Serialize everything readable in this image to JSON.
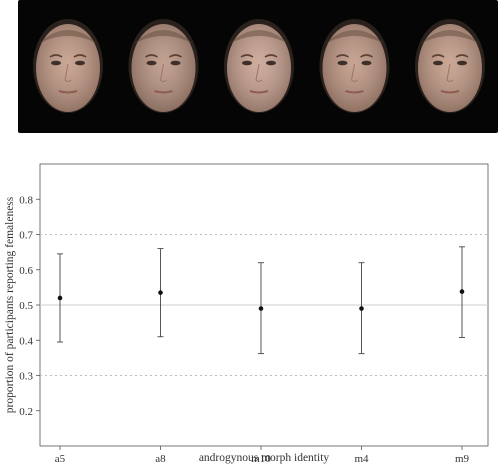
{
  "figure": {
    "faces": [
      {
        "id": "a5",
        "tone": "#c29a86"
      },
      {
        "id": "a8",
        "tone": "#b99482"
      },
      {
        "id": "m10",
        "tone": "#c8a190"
      },
      {
        "id": "m4",
        "tone": "#bf9784"
      },
      {
        "id": "m9",
        "tone": "#c39b87"
      }
    ]
  },
  "chart_data": {
    "type": "scatter",
    "title": "",
    "xlabel": "androgynous morph identity",
    "ylabel": "proportion of participants reporting femaleness",
    "categories": [
      "a5",
      "a8",
      "m10",
      "m4",
      "m9"
    ],
    "values": [
      0.52,
      0.535,
      0.49,
      0.49,
      0.538
    ],
    "error_low": [
      0.395,
      0.41,
      0.362,
      0.362,
      0.408
    ],
    "error_high": [
      0.645,
      0.66,
      0.62,
      0.62,
      0.665
    ],
    "ylim": [
      0.1,
      0.9
    ],
    "yticks": [
      0.2,
      0.3,
      0.4,
      0.5,
      0.6,
      0.7,
      0.8
    ],
    "ytick_labels": [
      "0.2",
      "0.3",
      "0.4",
      "0.5",
      "0.6",
      "0.7",
      "0.8"
    ],
    "reference_lines": {
      "solid": [
        0.5
      ],
      "dotted": [
        0.3,
        0.7
      ]
    },
    "grid": false,
    "legend": "none"
  }
}
